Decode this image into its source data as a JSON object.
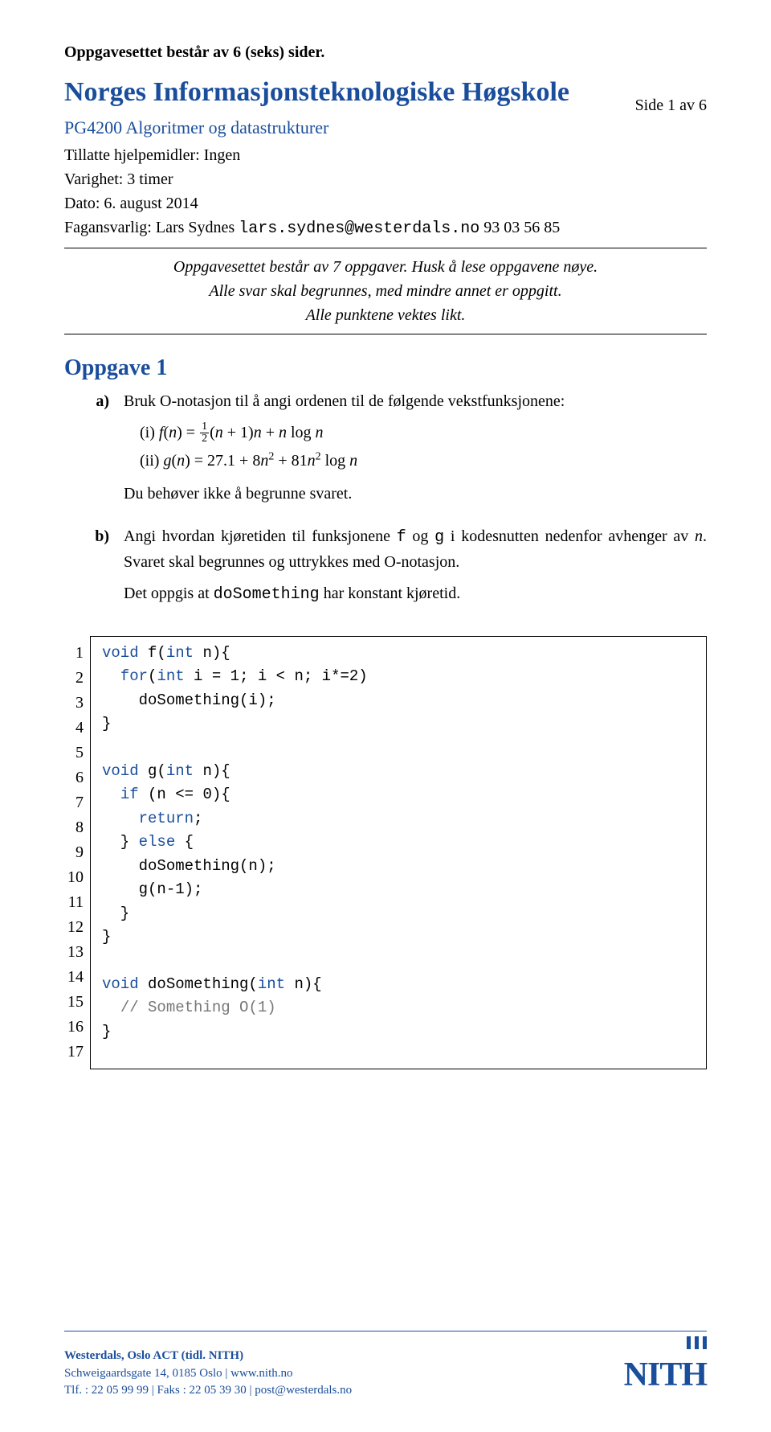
{
  "topnote": "Oppgavesettet består av  6 (seks) sider.",
  "side_label": "Side 1 av 6",
  "title": "Norges Informasjonsteknologiske Høgskole",
  "course": "PG4200 Algoritmer og datastrukturer",
  "meta": {
    "aids": "Tillatte hjelpemidler: Ingen",
    "duration": "Varighet: 3 timer",
    "date": "Dato: 6. august 2014",
    "responsible_pre": "Fagansvarlig: Lars Sydnes ",
    "responsible_mono": "lars.sydnes@westerdals.no",
    "responsible_post": "  93 03 56 85"
  },
  "instructions": {
    "l1": "Oppgavesettet består av 7 oppgaver. Husk å lese oppgavene nøye.",
    "l2": "Alle svar skal begrunnes, med mindre annet er oppgitt.",
    "l3": "Alle punktene vektes likt."
  },
  "oppgave_heading": "Oppgave 1",
  "q_a": {
    "label": "a)",
    "intro": "Bruk O-notasjon til å angi ordenen til de følgende vekstfunksjonene:",
    "i_label": "(i)",
    "ii_label": "(ii)",
    "note": "Du behøver ikke å begrunne svaret."
  },
  "q_b": {
    "label": "b)",
    "para1_pre": "Angi hvordan kjøretiden til funksjonene ",
    "para1_f": "f",
    "para1_mid": " og ",
    "para1_g": "g",
    "para1_post1": " i kodesnutten nedenfor avhenger av ",
    "para1_n": "n",
    "para1_post2": ". Svaret skal begrunnes og uttrykkes med O-notasjon.",
    "para2_pre": "Det oppgis at ",
    "para2_code": "doSomething",
    "para2_post": " har konstant kjøretid."
  },
  "code": {
    "lines": [
      {
        "n": "1",
        "seg": [
          [
            "kw",
            "void"
          ],
          [
            "",
            " f("
          ],
          [
            "kw",
            "int"
          ],
          [
            "",
            " n){"
          ]
        ]
      },
      {
        "n": "2",
        "seg": [
          [
            "",
            "  "
          ],
          [
            "kw",
            "for"
          ],
          [
            "",
            "("
          ],
          [
            "kw",
            "int"
          ],
          [
            "",
            " i = 1; i < n; i*=2)"
          ]
        ]
      },
      {
        "n": "3",
        "seg": [
          [
            "",
            "    doSomething(i);"
          ]
        ]
      },
      {
        "n": "4",
        "seg": [
          [
            "",
            "}"
          ]
        ]
      },
      {
        "n": "5",
        "seg": [
          [
            "",
            ""
          ]
        ]
      },
      {
        "n": "6",
        "seg": [
          [
            "kw",
            "void"
          ],
          [
            "",
            " g("
          ],
          [
            "kw",
            "int"
          ],
          [
            "",
            " n){"
          ]
        ]
      },
      {
        "n": "7",
        "seg": [
          [
            "",
            "  "
          ],
          [
            "kw",
            "if"
          ],
          [
            "",
            " (n <= 0){"
          ]
        ]
      },
      {
        "n": "8",
        "seg": [
          [
            "",
            "    "
          ],
          [
            "kw",
            "return"
          ],
          [
            "",
            ";"
          ]
        ]
      },
      {
        "n": "9",
        "seg": [
          [
            "",
            "  } "
          ],
          [
            "kw",
            "else"
          ],
          [
            "",
            " {"
          ]
        ]
      },
      {
        "n": "10",
        "seg": [
          [
            "",
            "    doSomething(n);"
          ]
        ]
      },
      {
        "n": "11",
        "seg": [
          [
            "",
            "    g(n-1);"
          ]
        ]
      },
      {
        "n": "12",
        "seg": [
          [
            "",
            "  }"
          ]
        ]
      },
      {
        "n": "13",
        "seg": [
          [
            "",
            "}"
          ]
        ]
      },
      {
        "n": "14",
        "seg": [
          [
            "",
            ""
          ]
        ]
      },
      {
        "n": "15",
        "seg": [
          [
            "kw",
            "void"
          ],
          [
            "",
            " doSomething("
          ],
          [
            "kw",
            "int"
          ],
          [
            "",
            " n){"
          ]
        ]
      },
      {
        "n": "16",
        "seg": [
          [
            "",
            "  "
          ],
          [
            "cmt",
            "// Something O(1)"
          ]
        ]
      },
      {
        "n": "17",
        "seg": [
          [
            "",
            "}"
          ]
        ]
      }
    ]
  },
  "footer": {
    "org1": "Westerdals, Oslo ACT (tidl. NITH)",
    "addr": "Schweigaardsgate 14, 0185 Oslo  |  www.nith.no",
    "contact": "Tlf. : 22 05 99 99  |  Faks : 22 05 39 30  |  post@westerdals.no",
    "logo_text": "NITH"
  }
}
